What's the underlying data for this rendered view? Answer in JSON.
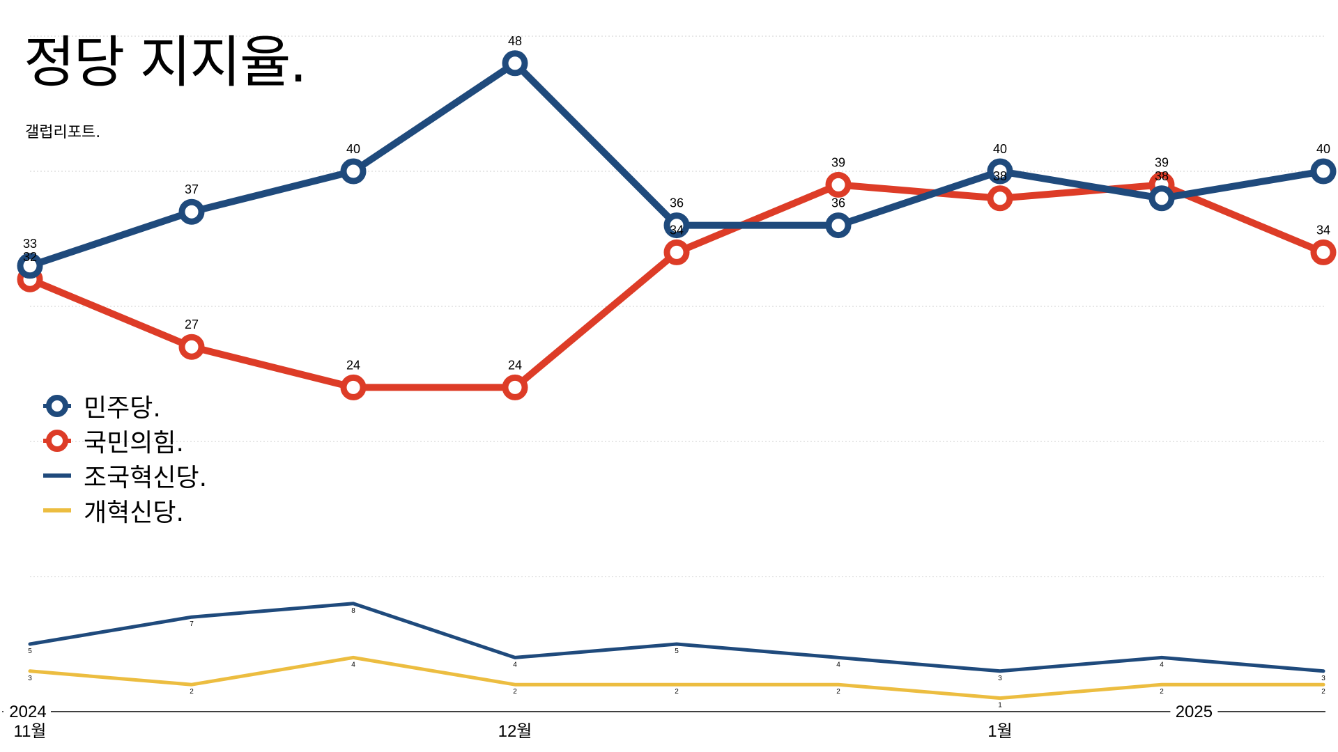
{
  "title": "정당 지지율.",
  "source": "갤럽리포트.",
  "colors": {
    "민주당": "#1f4a7c",
    "국민의힘": "#dd3c27",
    "조국혁신당": "#1f4a7c",
    "개혁신당": "#ecbd40",
    "grid": "#cfcfcf",
    "axis": "#000000"
  },
  "legend": [
    {
      "label": "민주당.",
      "marker": "ring",
      "color": "#1f4a7c"
    },
    {
      "label": "국민의힘.",
      "marker": "ring",
      "color": "#dd3c27"
    },
    {
      "label": "조국혁신당.",
      "marker": "line",
      "color": "#1f4a7c"
    },
    {
      "label": "개혁신당.",
      "marker": "line",
      "color": "#ecbd40"
    }
  ],
  "chart_data": {
    "type": "line",
    "title": "정당 지지율.",
    "subtitle": "갤럽리포트.",
    "x": [
      "2024-11-01",
      "2024-11-16",
      "2024-12-01",
      "2024-12-16",
      "2024-12-31",
      "2025-01-15",
      "2025-01-30",
      "2025-02-14",
      "2025-03-01"
    ],
    "x_axis_labels": [
      {
        "index": 0,
        "label": "11월",
        "year": "2024"
      },
      {
        "index": 3,
        "label": "12월",
        "year": ""
      },
      {
        "index": 6,
        "label": "1월",
        "year": ""
      },
      {
        "index": 7.2,
        "label": "",
        "year": "2025"
      }
    ],
    "ylim": [
      0,
      50
    ],
    "grid": true,
    "legend_position": "left",
    "series": [
      {
        "name": "민주당.",
        "values": [
          33,
          37,
          40,
          48,
          36,
          36,
          40,
          38,
          40
        ],
        "labels": [
          "33",
          "37",
          "40",
          "48",
          "36",
          "36",
          "40",
          "38",
          "40"
        ]
      },
      {
        "name": "국민의힘.",
        "values": [
          32,
          27,
          24,
          24,
          34,
          39,
          38,
          39,
          34
        ],
        "labels": [
          "32",
          "27",
          "24",
          "24",
          "34",
          "39",
          "38",
          "39",
          "34"
        ]
      },
      {
        "name": "조국혁신당.",
        "values": [
          5,
          7,
          8,
          4,
          5,
          4,
          3,
          4,
          3
        ],
        "labels": [
          "5",
          "7",
          "8",
          "4",
          "5",
          "4",
          "3",
          "4",
          "3"
        ]
      },
      {
        "name": "개혁신당.",
        "values": [
          3,
          2,
          4,
          2,
          2,
          2,
          1,
          2,
          2
        ],
        "labels": [
          "3",
          "2",
          "4",
          "2",
          "2",
          "2",
          "1",
          "2",
          "2"
        ]
      }
    ]
  }
}
